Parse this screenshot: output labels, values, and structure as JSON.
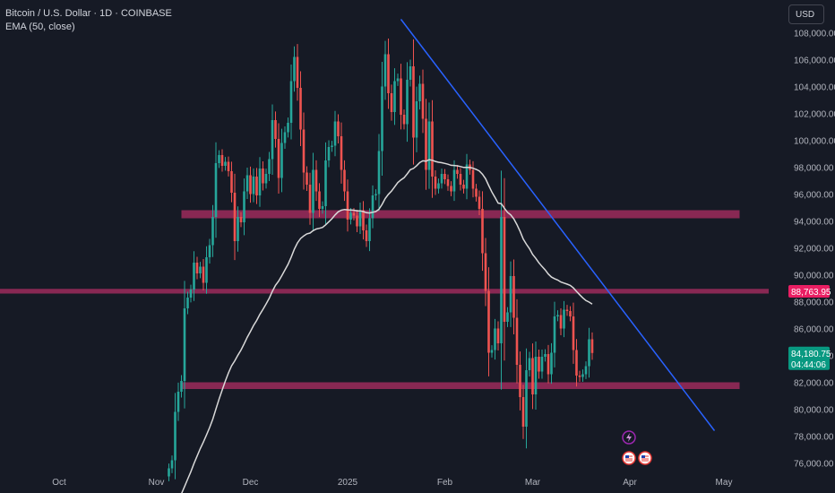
{
  "header": {
    "symbol_line": "Bitcoin / U.S. Dollar · 1D · COINBASE",
    "indicator_line": "EMA (50, close)",
    "currency": "USD"
  },
  "colors": {
    "background": "#161a25",
    "up": "#26a69a",
    "down": "#ef5350",
    "ema": "#d9d9d9",
    "trendline": "#2962ff",
    "zone": "#9c2c5c",
    "price_label_red": "#e91e63",
    "price_label_green": "#089981"
  },
  "chart_data": {
    "type": "candlestick",
    "symbol": "Bitcoin / U.S. Dollar",
    "interval": "1D",
    "exchange": "COINBASE",
    "ylim": [
      75800,
      109200
    ],
    "y_ticks": [
      "76,000.00",
      "78,000.00",
      "80,000.00",
      "82,000.00",
      "84,000.00",
      "86,000.00",
      "88,000.00",
      "90,000.00",
      "92,000.00",
      "94,000.00",
      "96,000.00",
      "98,000.00",
      "100,000.00",
      "102,000.00",
      "104,000.00",
      "106,000.00",
      "108,000.00"
    ],
    "y_tick_values": [
      76000,
      78000,
      80000,
      82000,
      84000,
      86000,
      88000,
      90000,
      92000,
      94000,
      96000,
      98000,
      100000,
      102000,
      104000,
      106000,
      108000
    ],
    "x_labels": [
      {
        "label": "Oct",
        "date": "2024-10-01"
      },
      {
        "label": "Nov",
        "date": "2024-11-01"
      },
      {
        "label": "Dec",
        "date": "2024-12-01"
      },
      {
        "label": "2025",
        "date": "2025-01-01"
      },
      {
        "label": "Feb",
        "date": "2025-02-01"
      },
      {
        "label": "Mar",
        "date": "2025-03-01"
      },
      {
        "label": "Apr",
        "date": "2025-04-01"
      },
      {
        "label": "May",
        "date": "2025-05-01"
      }
    ],
    "closes": {
      "start_date": "2024-11-05",
      "values": [
        75600,
        76200,
        79800,
        81300,
        82100,
        87500,
        88300,
        88900,
        90900,
        90100,
        90600,
        89400,
        91300,
        92200,
        94300,
        98300,
        98900,
        98100,
        98400,
        97700,
        96100,
        92500,
        94300,
        93900,
        96200,
        97400,
        96000,
        97300,
        95900,
        97900,
        96800,
        97500,
        98600,
        101500,
        100100,
        97200,
        99800,
        100600,
        101300,
        104400,
        106200,
        103900,
        100800,
        97600,
        96700,
        94600,
        97800,
        96200,
        94900,
        95100,
        98500,
        99500,
        99600,
        101400,
        100300,
        97800,
        96200,
        94100,
        94600,
        94400,
        93600,
        94800,
        93300,
        92500,
        94200,
        95900,
        96000,
        99200,
        104000,
        106400,
        103500,
        102100,
        104400,
        104600,
        101900,
        101200,
        104500,
        105500,
        100200,
        102900,
        104200,
        101600,
        97800,
        101400,
        97300,
        96400,
        96800,
        97500,
        97100,
        96600,
        96200,
        97800,
        97500,
        96700,
        96400,
        98200,
        97800,
        96400,
        95800,
        94900,
        91600,
        88800,
        84200,
        84400,
        86000,
        84900,
        94300,
        86500,
        87200,
        89900,
        86800,
        83300,
        80900,
        78700,
        82900,
        83800,
        81100,
        83900,
        82800,
        83900,
        84100,
        82600,
        84200,
        86900,
        87000,
        86000,
        87400,
        87300,
        86900,
        84400,
        82500,
        82400,
        82600,
        83200,
        85200,
        84180
      ]
    },
    "ema": {
      "name": "EMA (50, close)",
      "length": 50
    },
    "horizontal_zones": [
      {
        "from": 94200,
        "to": 94800
      },
      {
        "from": 88600,
        "to": 88950
      },
      {
        "from": 81500,
        "to": 82000
      }
    ],
    "trendline": {
      "start": {
        "date": "2025-01-18",
        "price": 109000
      },
      "end": {
        "date": "2025-04-28",
        "price": 78400
      }
    },
    "price_labels": [
      {
        "value": "88,763.95",
        "price": 88763.95,
        "style": "red"
      },
      {
        "value": "84,180.75",
        "price": 84180.75,
        "countdown": "04:44:06",
        "style": "green"
      }
    ],
    "grid": false,
    "legend": "top-left"
  }
}
